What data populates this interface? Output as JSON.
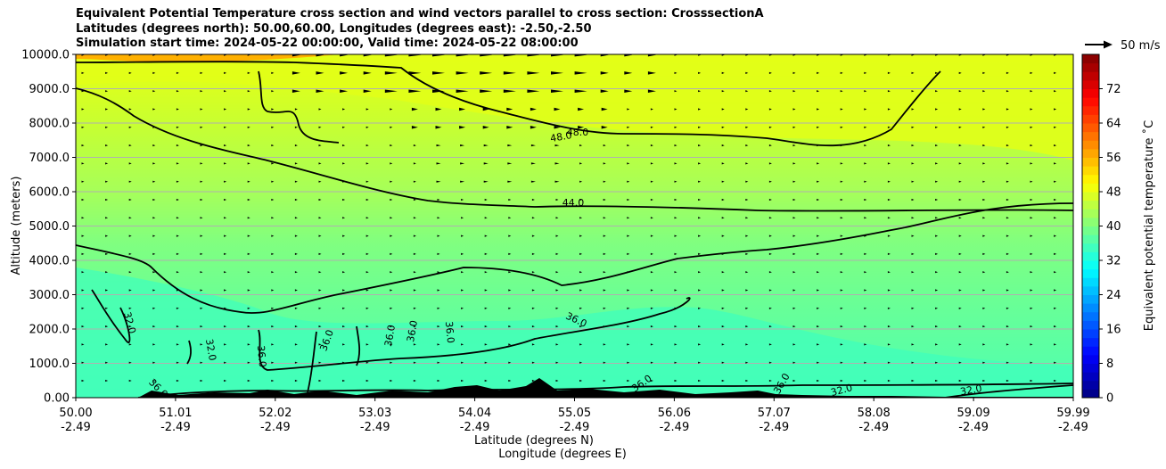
{
  "title": {
    "line1": "Equivalent Potential Temperature cross section and wind vectors parallel to cross section: CrosssectionA",
    "line2": "Latitudes (degrees north): 50.00,60.00, Longitudes (degrees east): -2.50,-2.50",
    "line3": "Simulation start time: 2024-05-22 00:00:00, Valid time: 2024-05-22 08:00:00"
  },
  "quiver_key": {
    "label": "50 m/s"
  },
  "chart_data": {
    "type": "heatmap",
    "title": "Equivalent Potential Temperature cross section and wind vectors parallel to cross section: CrosssectionA",
    "ylabel": "Altitude (meters)",
    "xlabel_lines": [
      "Latitude (degrees N)",
      "Longitude (degrees E)"
    ],
    "colorbar_label": "Equivalent potential temperature ˚C",
    "ylim": [
      0,
      10000
    ],
    "y_ticks": [
      "0.00",
      "1000.0",
      "2000.0",
      "3000.0",
      "4000.0",
      "5000.0",
      "6000.0",
      "7000.0",
      "8000.0",
      "9000.0",
      "10000.0"
    ],
    "x_ticks": [
      {
        "lat": "50.00",
        "lon": "-2.49"
      },
      {
        "lat": "51.01",
        "lon": "-2.49"
      },
      {
        "lat": "52.02",
        "lon": "-2.49"
      },
      {
        "lat": "53.03",
        "lon": "-2.49"
      },
      {
        "lat": "54.04",
        "lon": "-2.49"
      },
      {
        "lat": "55.05",
        "lon": "-2.49"
      },
      {
        "lat": "56.06",
        "lon": "-2.49"
      },
      {
        "lat": "57.07",
        "lon": "-2.49"
      },
      {
        "lat": "58.08",
        "lon": "-2.49"
      },
      {
        "lat": "59.09",
        "lon": "-2.49"
      },
      {
        "lat": "59.99",
        "lon": "-2.49"
      }
    ],
    "colorbar_ticks": [
      "0",
      "8",
      "16",
      "24",
      "32",
      "40",
      "48",
      "56",
      "64",
      "72"
    ],
    "colorbar_range": [
      0,
      80
    ],
    "colors": {
      "low": "#00008f",
      "mid_low": "#00ffff",
      "mid": "#7fff7f",
      "mid_high": "#ffff00",
      "high": "#ff0000",
      "top": "#800000",
      "terrain": "#000000",
      "contour": "#000000",
      "grid": "#b0b0b0"
    },
    "contour_labels": [
      "32.0",
      "32.0",
      "36.0",
      "36.0",
      "36.0",
      "36.0",
      "36.0",
      "36.0",
      "36.0",
      "36.0",
      "44.0",
      "48.0",
      "48.0",
      "32.0",
      "32.0",
      "36.0"
    ]
  }
}
